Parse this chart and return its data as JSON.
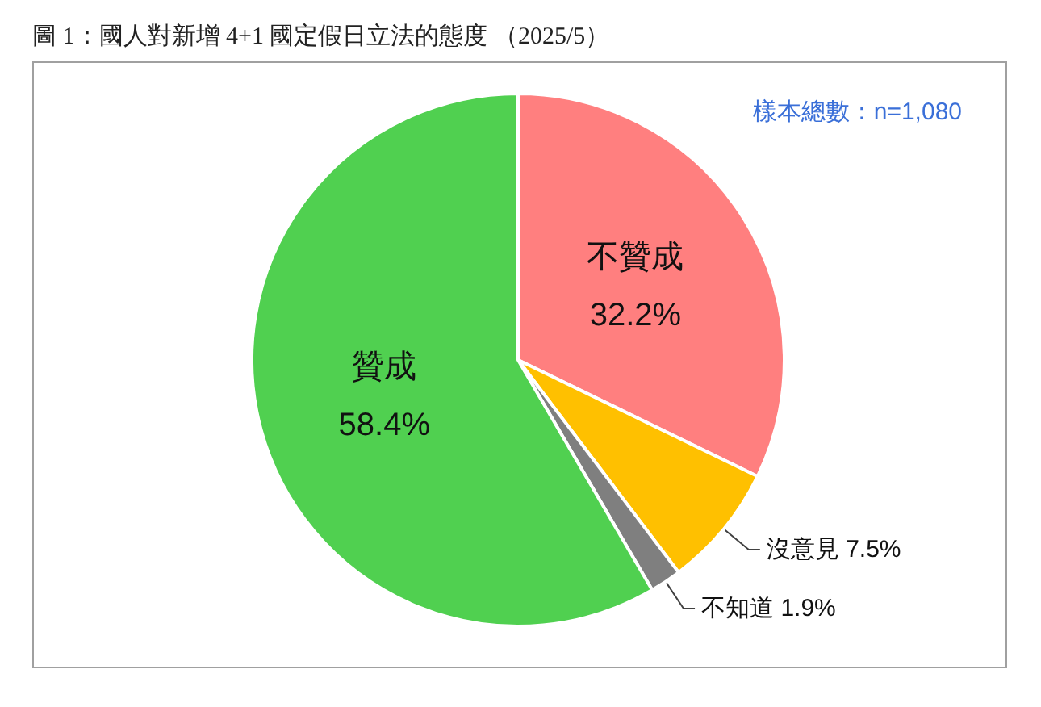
{
  "chart_data": {
    "type": "pie",
    "title": "圖 1：國人對新增 4+1 國定假日立法的態度 （2025/5）",
    "categories": [
      "不贊成",
      "沒意見",
      "不知道",
      "贊成"
    ],
    "values": [
      32.2,
      7.5,
      1.9,
      58.4
    ],
    "colors": [
      "#ff7f7f",
      "#ffc000",
      "#7f7f7f",
      "#50d050"
    ],
    "value_labels": [
      "32.2%",
      "7.5%",
      "1.9%",
      "58.4%"
    ],
    "annotations": [
      "樣本總數：n=1,080"
    ]
  }
}
